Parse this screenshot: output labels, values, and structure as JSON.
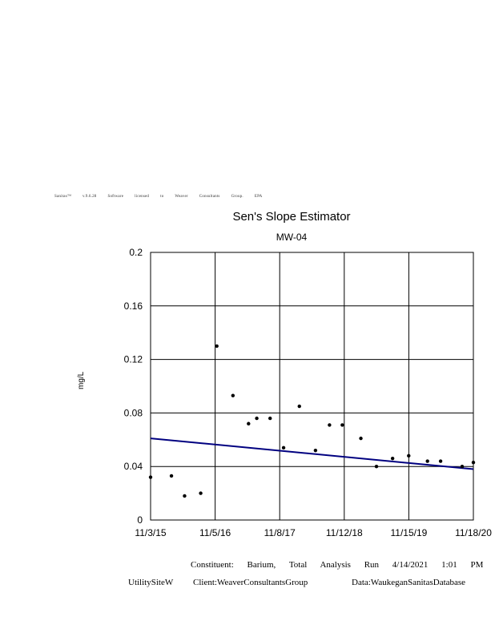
{
  "license_line": [
    "Sanitas™",
    "v.9.6.28",
    "Software",
    "licensed",
    "to",
    "Weaver",
    "Consultants",
    "Group.",
    "EPA"
  ],
  "footer": {
    "constituent_label": "Constituent:",
    "constituent_1": "Barium,",
    "constituent_2": "Total",
    "analysis_label": "Analysis",
    "run_label": "Run",
    "run_date": "4/14/2021",
    "run_time": "1:01",
    "run_ampm": "PM",
    "site": "UtilitySiteW",
    "client": "Client:WeaverConsultantsGroup",
    "data": "Data:WaukeganSanitasDatabase"
  },
  "chart_data": {
    "type": "scatter",
    "title": "Sen's Slope Estimator",
    "subtitle": "MW-04",
    "xlabel": "",
    "ylabel": "mg/L",
    "ylim": [
      0,
      0.2
    ],
    "yticks": [
      "0",
      "0.04",
      "0.08",
      "0.12",
      "0.16",
      "0.2"
    ],
    "xticks": [
      "11/3/15",
      "11/5/16",
      "11/8/17",
      "11/12/18",
      "11/15/19",
      "11/18/20"
    ],
    "grid": true,
    "points": [
      {
        "x": "2015-11-03",
        "y": 0.032
      },
      {
        "x": "2016-03-01",
        "y": 0.033
      },
      {
        "x": "2016-05-15",
        "y": 0.018
      },
      {
        "x": "2016-08-15",
        "y": 0.02
      },
      {
        "x": "2016-11-15",
        "y": 0.13
      },
      {
        "x": "2017-02-15",
        "y": 0.093
      },
      {
        "x": "2017-05-15",
        "y": 0.072
      },
      {
        "x": "2017-07-01",
        "y": 0.076
      },
      {
        "x": "2017-09-15",
        "y": 0.076
      },
      {
        "x": "2017-12-01",
        "y": 0.054
      },
      {
        "x": "2018-03-01",
        "y": 0.085
      },
      {
        "x": "2018-06-01",
        "y": 0.052
      },
      {
        "x": "2018-08-20",
        "y": 0.071
      },
      {
        "x": "2018-11-01",
        "y": 0.071
      },
      {
        "x": "2019-02-15",
        "y": 0.061
      },
      {
        "x": "2019-05-15",
        "y": 0.04
      },
      {
        "x": "2019-08-15",
        "y": 0.046
      },
      {
        "x": "2019-11-15",
        "y": 0.048
      },
      {
        "x": "2020-03-01",
        "y": 0.044
      },
      {
        "x": "2020-05-15",
        "y": 0.044
      },
      {
        "x": "2020-09-15",
        "y": 0.04
      },
      {
        "x": "2020-11-18",
        "y": 0.043
      }
    ],
    "trend_line": {
      "x": [
        "2015-11-03",
        "2020-11-18"
      ],
      "y": [
        0.061,
        0.038
      ]
    },
    "colors": {
      "trend": "#000080",
      "points": "#000000",
      "grid": "#000000"
    }
  }
}
